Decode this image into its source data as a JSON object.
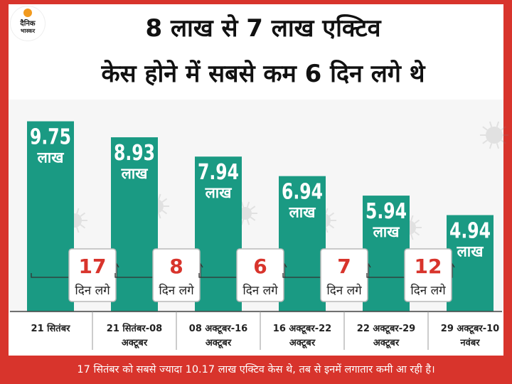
{
  "logo": {
    "line1": "दैनिक",
    "line2": "भास्कर"
  },
  "title": {
    "line1": "8 लाख से 7 लाख एक्टिव",
    "line2": "केस होने में सबसे कम 6 दिन लगे थे"
  },
  "chart_data": {
    "type": "bar",
    "unit_label": "लाख",
    "ylim": [
      0,
      10.5
    ],
    "categories": [
      "21 सितंबर",
      "21 सितंबर-08 अक्टूबर",
      "08 अक्टूबर-16 अक्टूबर",
      "16 अक्टूबर-22 अक्टूबर",
      "22 अक्टूबर-29 अक्टूबर",
      "29 अक्टूबर-10 नवंबर"
    ],
    "category_lines": [
      [
        "21 सितंबर"
      ],
      [
        "21 सितंबर-08",
        "अक्टूबर"
      ],
      [
        "08 अक्टूबर-16",
        "अक्टूबर"
      ],
      [
        "16 अक्टूबर-22",
        "अक्टूबर"
      ],
      [
        "22 अक्टूबर-29",
        "अक्टूबर"
      ],
      [
        "29 अक्टूबर-10",
        "नवंबर"
      ]
    ],
    "values": [
      9.75,
      8.93,
      7.94,
      6.94,
      5.94,
      4.94
    ],
    "value_labels": [
      "9.75",
      "8.93",
      "7.94",
      "6.94",
      "5.94",
      "4.94"
    ],
    "intervals": [
      {
        "days": "17",
        "label": "दिन लगे"
      },
      {
        "days": "8",
        "label": "दिन लगे"
      },
      {
        "days": "6",
        "label": "दिन लगे"
      },
      {
        "days": "7",
        "label": "दिन लगे"
      },
      {
        "days": "12",
        "label": "दिन लगे"
      }
    ],
    "colors": {
      "bar": "#1a9a83",
      "accent": "#d8342c",
      "box_border": "#b9b9b9"
    }
  },
  "footer": {
    "text": "17 सितंबर को सबसे ज्यादा 10.17 लाख एक्टिव केस थे, तब से इनमें लगातार कमी आ रही है।"
  }
}
